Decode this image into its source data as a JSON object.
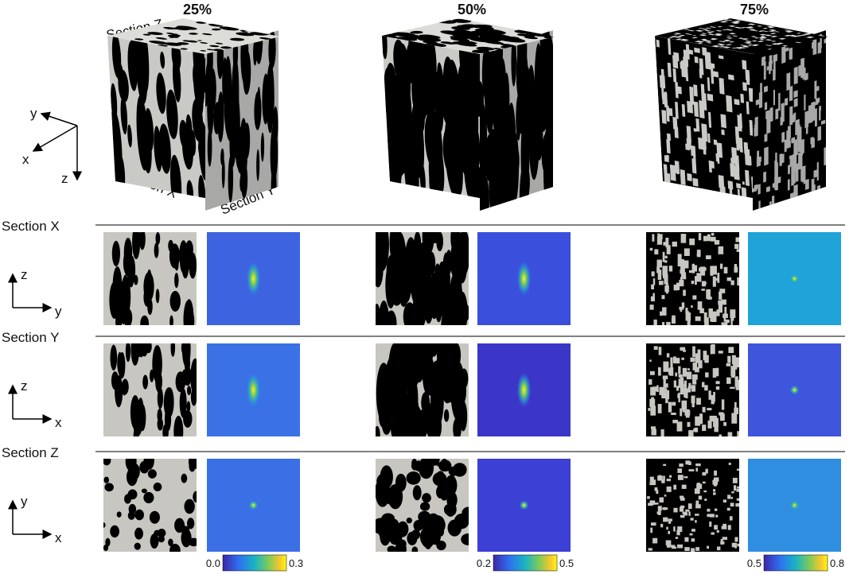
{
  "columns": [
    {
      "title": "25%",
      "colorbar": {
        "min": "0.0",
        "max": "0.3"
      }
    },
    {
      "title": "50%",
      "colorbar": {
        "min": "0.2",
        "max": "0.5"
      }
    },
    {
      "title": "75%",
      "colorbar": {
        "min": "0.5",
        "max": "0.8"
      }
    }
  ],
  "cube_labels": {
    "z": "Section Z",
    "x": "Section X",
    "y": "Section Y"
  },
  "axes_3d": {
    "y": "y",
    "x": "x",
    "z": "z"
  },
  "rows": [
    {
      "label": "Section X",
      "vertical": "z",
      "horizontal": "y"
    },
    {
      "label": "Section Y",
      "vertical": "z",
      "horizontal": "x"
    },
    {
      "label": "Section Z",
      "vertical": "y",
      "horizontal": "x"
    }
  ]
}
